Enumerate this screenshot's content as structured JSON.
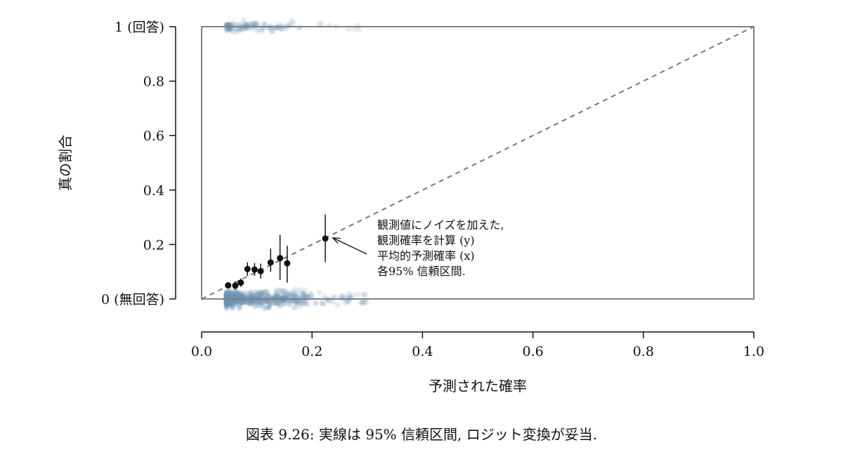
{
  "chart_data": {
    "type": "scatter",
    "title": "",
    "xlabel": "予測された確率",
    "ylabel": "真の割合",
    "xlim": [
      0,
      1
    ],
    "ylim": [
      0,
      1
    ],
    "x_ticks": [
      "0.0",
      "0.2",
      "0.4",
      "0.6",
      "0.8",
      "1.0"
    ],
    "y_ticks": [
      "0 (無回答)",
      "0.2",
      "0.4",
      "0.6",
      "0.8",
      "1 (回答)"
    ],
    "reference_line": "y = x (dashed)",
    "point_color": "#6f97b8",
    "binned_points": [
      {
        "x": 0.048,
        "y": 0.05,
        "lo": 0.04,
        "hi": 0.06
      },
      {
        "x": 0.061,
        "y": 0.049,
        "lo": 0.035,
        "hi": 0.064
      },
      {
        "x": 0.071,
        "y": 0.06,
        "lo": 0.045,
        "hi": 0.075
      },
      {
        "x": 0.083,
        "y": 0.11,
        "lo": 0.085,
        "hi": 0.135
      },
      {
        "x": 0.096,
        "y": 0.108,
        "lo": 0.085,
        "hi": 0.132
      },
      {
        "x": 0.107,
        "y": 0.102,
        "lo": 0.075,
        "hi": 0.13
      },
      {
        "x": 0.125,
        "y": 0.134,
        "lo": 0.1,
        "hi": 0.185
      },
      {
        "x": 0.142,
        "y": 0.15,
        "lo": 0.07,
        "hi": 0.235
      },
      {
        "x": 0.155,
        "y": 0.131,
        "lo": 0.06,
        "hi": 0.195
      },
      {
        "x": 0.224,
        "y": 0.222,
        "lo": 0.135,
        "hi": 0.31
      }
    ],
    "annotation": {
      "lines": [
        "観測値にノイズを加えた,",
        "観測確率を計算 (y)",
        "平均的予測確率 (x)",
        "各95% 信頼区間."
      ],
      "points_to": {
        "x": 0.23,
        "y": 0.222
      }
    }
  },
  "caption": "図表 9.26: 実線は 95% 信頼区間, ロジット変換が妥当."
}
